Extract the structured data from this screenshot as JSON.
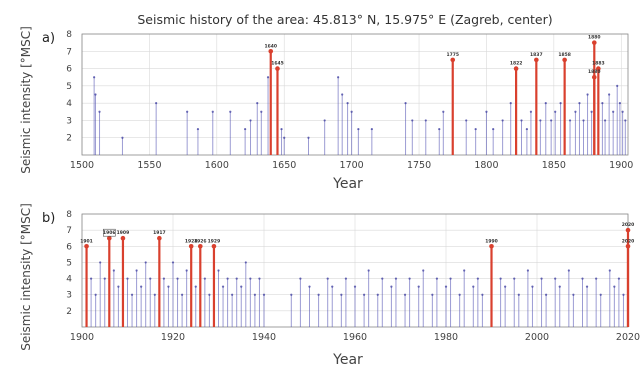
{
  "title": "Seismic history of the area: 45.813° N, 15.975° E (Zagreb, center)",
  "colors": {
    "major": "#d9402e",
    "minor": "#4b4bb0",
    "grid": "#d9d9d9"
  },
  "chart_data": [
    {
      "type": "bar",
      "panel": "a)",
      "xlabel": "Year",
      "ylabel": "Seismic intensity [°MSC]",
      "xlim": [
        1500,
        1905
      ],
      "ylim": [
        1,
        8
      ],
      "xticks": [
        "1500",
        "1550",
        "1600",
        "1650",
        "1700",
        "1750",
        "1800",
        "1850",
        "1900"
      ],
      "yticks": [
        "2",
        "3",
        "4",
        "5",
        "6",
        "7",
        "8"
      ],
      "major_events": [
        {
          "x": 1640,
          "y": 7,
          "label": "1640"
        },
        {
          "x": 1645,
          "y": 6,
          "label": "1645"
        },
        {
          "x": 1775,
          "y": 6.5,
          "label": "1775"
        },
        {
          "x": 1822,
          "y": 6,
          "label": "1822"
        },
        {
          "x": 1837,
          "y": 6.5,
          "label": "1837"
        },
        {
          "x": 1858,
          "y": 6.5,
          "label": "1858"
        },
        {
          "x": 1880,
          "y": 7.5,
          "label": "1880"
        },
        {
          "x": 1883,
          "y": 6,
          "label": "1883"
        },
        {
          "x": 1880,
          "y": 5.5,
          "label": "1880"
        }
      ],
      "minor_events": [
        {
          "x": 1509,
          "y": 5.5
        },
        {
          "x": 1510,
          "y": 4.5
        },
        {
          "x": 1513,
          "y": 3.5
        },
        {
          "x": 1530,
          "y": 2
        },
        {
          "x": 1555,
          "y": 4
        },
        {
          "x": 1578,
          "y": 3.5
        },
        {
          "x": 1586,
          "y": 2.5
        },
        {
          "x": 1597,
          "y": 3.5
        },
        {
          "x": 1610,
          "y": 3.5
        },
        {
          "x": 1621,
          "y": 2.5
        },
        {
          "x": 1625,
          "y": 3
        },
        {
          "x": 1630,
          "y": 4
        },
        {
          "x": 1633,
          "y": 3.5
        },
        {
          "x": 1638,
          "y": 5.5
        },
        {
          "x": 1648,
          "y": 2.5
        },
        {
          "x": 1650,
          "y": 2
        },
        {
          "x": 1668,
          "y": 2
        },
        {
          "x": 1680,
          "y": 3
        },
        {
          "x": 1690,
          "y": 5.5
        },
        {
          "x": 1693,
          "y": 4.5
        },
        {
          "x": 1697,
          "y": 4
        },
        {
          "x": 1700,
          "y": 3.5
        },
        {
          "x": 1705,
          "y": 2.5
        },
        {
          "x": 1715,
          "y": 2.5
        },
        {
          "x": 1740,
          "y": 4
        },
        {
          "x": 1745,
          "y": 3
        },
        {
          "x": 1755,
          "y": 3
        },
        {
          "x": 1765,
          "y": 2.5
        },
        {
          "x": 1768,
          "y": 3.5
        },
        {
          "x": 1785,
          "y": 3
        },
        {
          "x": 1792,
          "y": 2.5
        },
        {
          "x": 1800,
          "y": 3.5
        },
        {
          "x": 1805,
          "y": 2.5
        },
        {
          "x": 1812,
          "y": 3
        },
        {
          "x": 1818,
          "y": 4
        },
        {
          "x": 1826,
          "y": 3
        },
        {
          "x": 1830,
          "y": 2.5
        },
        {
          "x": 1833,
          "y": 3.5
        },
        {
          "x": 1840,
          "y": 3
        },
        {
          "x": 1844,
          "y": 4
        },
        {
          "x": 1848,
          "y": 3
        },
        {
          "x": 1851,
          "y": 3.5
        },
        {
          "x": 1855,
          "y": 4
        },
        {
          "x": 1862,
          "y": 3
        },
        {
          "x": 1866,
          "y": 3.5
        },
        {
          "x": 1869,
          "y": 4
        },
        {
          "x": 1872,
          "y": 3
        },
        {
          "x": 1875,
          "y": 4.5
        },
        {
          "x": 1878,
          "y": 3.5
        },
        {
          "x": 1886,
          "y": 4
        },
        {
          "x": 1888,
          "y": 3
        },
        {
          "x": 1891,
          "y": 4.5
        },
        {
          "x": 1894,
          "y": 3.5
        },
        {
          "x": 1897,
          "y": 5
        },
        {
          "x": 1899,
          "y": 4
        },
        {
          "x": 1901,
          "y": 3.5
        },
        {
          "x": 1903,
          "y": 3
        }
      ]
    },
    {
      "type": "bar",
      "panel": "b)",
      "xlabel": "Year",
      "ylabel": "Seismic intensity [°MSC]",
      "xlim": [
        1900,
        2020
      ],
      "ylim": [
        1,
        8
      ],
      "xticks": [
        "1900",
        "1920",
        "1940",
        "1960",
        "1980",
        "2000",
        "2020"
      ],
      "yticks": [
        "2",
        "3",
        "4",
        "5",
        "6",
        "7",
        "8"
      ],
      "major_events": [
        {
          "x": 1901,
          "y": 6,
          "label": "1901"
        },
        {
          "x": 1906,
          "y": 6.5,
          "label": "1906",
          "boxed": true
        },
        {
          "x": 1909,
          "y": 6.5,
          "label": "1909"
        },
        {
          "x": 1917,
          "y": 6.5,
          "label": "1917"
        },
        {
          "x": 1924,
          "y": 6,
          "label": "1924"
        },
        {
          "x": 1926,
          "y": 6,
          "label": "1926"
        },
        {
          "x": 1929,
          "y": 6,
          "label": "1929"
        },
        {
          "x": 1990,
          "y": 6,
          "label": "1990"
        },
        {
          "x": 2020,
          "y": 7,
          "label": "2020"
        },
        {
          "x": 2020,
          "y": 6,
          "label": "2020"
        }
      ],
      "minor_events": [
        {
          "x": 1902,
          "y": 4
        },
        {
          "x": 1903,
          "y": 3
        },
        {
          "x": 1904,
          "y": 5
        },
        {
          "x": 1905,
          "y": 4
        },
        {
          "x": 1907,
          "y": 4.5
        },
        {
          "x": 1908,
          "y": 3.5
        },
        {
          "x": 1910,
          "y": 4
        },
        {
          "x": 1911,
          "y": 3
        },
        {
          "x": 1912,
          "y": 4.5
        },
        {
          "x": 1913,
          "y": 3.5
        },
        {
          "x": 1914,
          "y": 5
        },
        {
          "x": 1915,
          "y": 4
        },
        {
          "x": 1916,
          "y": 3
        },
        {
          "x": 1918,
          "y": 4
        },
        {
          "x": 1919,
          "y": 3.5
        },
        {
          "x": 1920,
          "y": 5
        },
        {
          "x": 1921,
          "y": 4
        },
        {
          "x": 1922,
          "y": 3
        },
        {
          "x": 1923,
          "y": 4.5
        },
        {
          "x": 1925,
          "y": 3.5
        },
        {
          "x": 1927,
          "y": 4
        },
        {
          "x": 1928,
          "y": 3
        },
        {
          "x": 1930,
          "y": 4.5
        },
        {
          "x": 1931,
          "y": 3.5
        },
        {
          "x": 1932,
          "y": 4
        },
        {
          "x": 1933,
          "y": 3
        },
        {
          "x": 1934,
          "y": 4
        },
        {
          "x": 1935,
          "y": 3.5
        },
        {
          "x": 1936,
          "y": 5
        },
        {
          "x": 1937,
          "y": 4
        },
        {
          "x": 1938,
          "y": 3
        },
        {
          "x": 1939,
          "y": 4
        },
        {
          "x": 1940,
          "y": 3
        },
        {
          "x": 1946,
          "y": 3
        },
        {
          "x": 1948,
          "y": 4
        },
        {
          "x": 1950,
          "y": 3.5
        },
        {
          "x": 1952,
          "y": 3
        },
        {
          "x": 1954,
          "y": 4
        },
        {
          "x": 1955,
          "y": 3.5
        },
        {
          "x": 1957,
          "y": 3
        },
        {
          "x": 1958,
          "y": 4
        },
        {
          "x": 1960,
          "y": 3.5
        },
        {
          "x": 1962,
          "y": 3
        },
        {
          "x": 1963,
          "y": 4.5
        },
        {
          "x": 1965,
          "y": 3
        },
        {
          "x": 1966,
          "y": 4
        },
        {
          "x": 1968,
          "y": 3.5
        },
        {
          "x": 1969,
          "y": 4
        },
        {
          "x": 1971,
          "y": 3
        },
        {
          "x": 1972,
          "y": 4
        },
        {
          "x": 1974,
          "y": 3.5
        },
        {
          "x": 1975,
          "y": 4.5
        },
        {
          "x": 1977,
          "y": 3
        },
        {
          "x": 1978,
          "y": 4
        },
        {
          "x": 1980,
          "y": 3.5
        },
        {
          "x": 1981,
          "y": 4
        },
        {
          "x": 1983,
          "y": 3
        },
        {
          "x": 1984,
          "y": 4.5
        },
        {
          "x": 1986,
          "y": 3.5
        },
        {
          "x": 1987,
          "y": 4
        },
        {
          "x": 1988,
          "y": 3
        },
        {
          "x": 1992,
          "y": 4
        },
        {
          "x": 1993,
          "y": 3.5
        },
        {
          "x": 1995,
          "y": 4
        },
        {
          "x": 1996,
          "y": 3
        },
        {
          "x": 1998,
          "y": 4.5
        },
        {
          "x": 1999,
          "y": 3.5
        },
        {
          "x": 2001,
          "y": 4
        },
        {
          "x": 2002,
          "y": 3
        },
        {
          "x": 2004,
          "y": 4
        },
        {
          "x": 2005,
          "y": 3.5
        },
        {
          "x": 2007,
          "y": 4.5
        },
        {
          "x": 2008,
          "y": 3
        },
        {
          "x": 2010,
          "y": 4
        },
        {
          "x": 2011,
          "y": 3.5
        },
        {
          "x": 2013,
          "y": 4
        },
        {
          "x": 2014,
          "y": 3
        },
        {
          "x": 2016,
          "y": 4.5
        },
        {
          "x": 2017,
          "y": 3.5
        },
        {
          "x": 2018,
          "y": 4
        },
        {
          "x": 2019,
          "y": 3
        }
      ]
    }
  ]
}
